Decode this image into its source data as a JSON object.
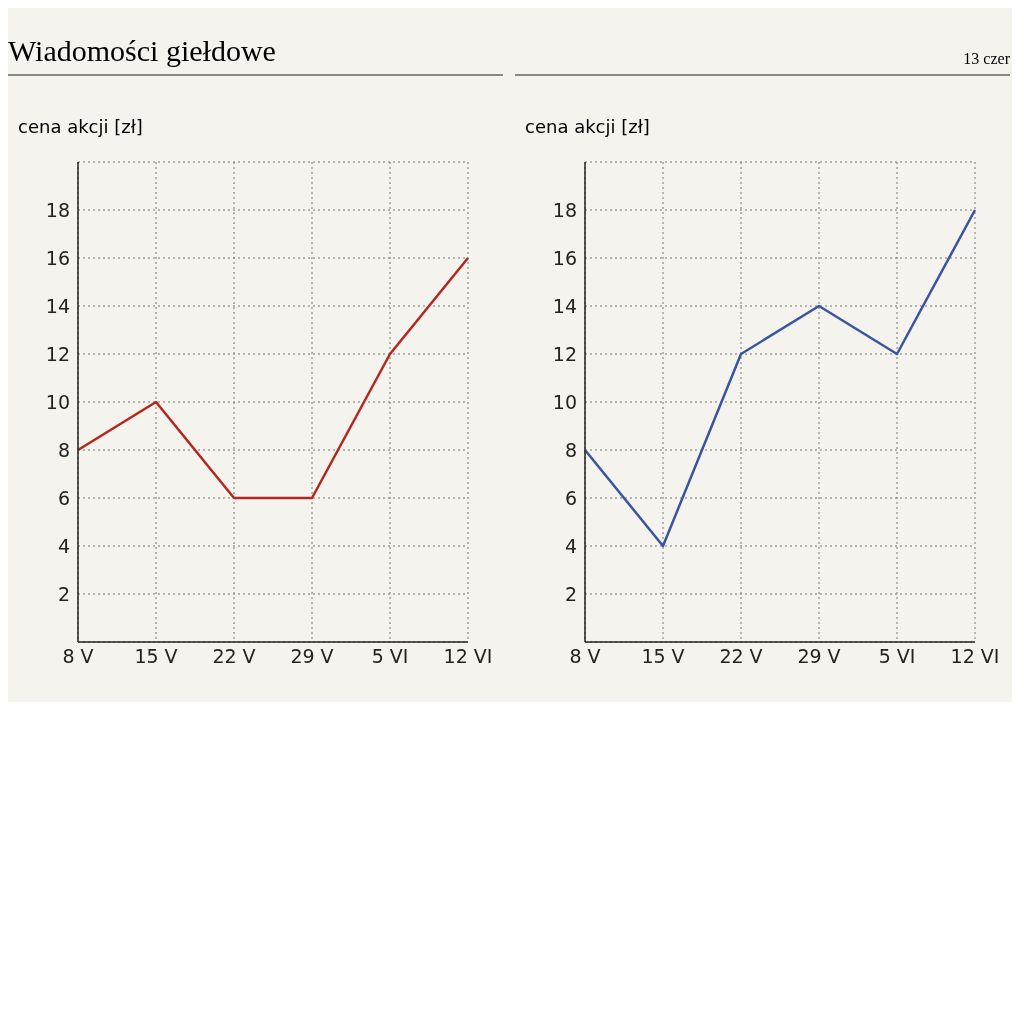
{
  "chart_data": [
    {
      "type": "line",
      "title": "Wiadomości giełdowe",
      "ylabel": "cena  akcji [zł]",
      "categories": [
        "8 V",
        "15 V",
        "22 V",
        "29 V",
        "5 VI",
        "12 VI"
      ],
      "series": [
        {
          "color": "#b5261e",
          "values": [
            8,
            10,
            6,
            6,
            12,
            16
          ]
        }
      ],
      "ylim": [
        0,
        20
      ],
      "yticks": [
        2,
        4,
        6,
        8,
        10,
        12,
        14,
        16,
        18
      ],
      "grid": true,
      "legend": false,
      "marker": "none",
      "line_style": "solid"
    },
    {
      "type": "line",
      "annotations": [
        "13 czer"
      ],
      "ylabel": "cena  akcji [zł]",
      "categories": [
        "8 V",
        "15 V",
        "22 V",
        "29 V",
        "5 VI",
        "12 VI"
      ],
      "series": [
        {
          "color": "#3a55a0",
          "values": [
            8,
            4,
            12,
            14,
            12,
            18
          ]
        }
      ],
      "ylim": [
        0,
        20
      ],
      "yticks": [
        2,
        4,
        6,
        8,
        10,
        12,
        14,
        16,
        18
      ],
      "grid": true,
      "legend": false,
      "marker": "none",
      "line_style": "solid"
    }
  ]
}
